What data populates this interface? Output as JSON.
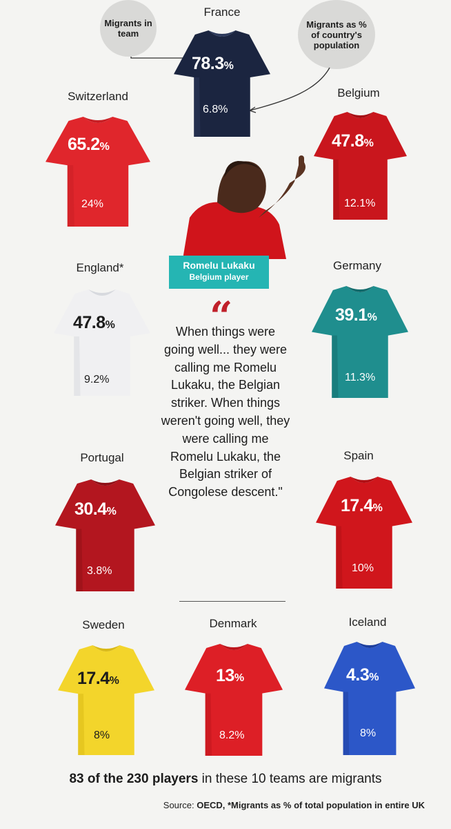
{
  "legend": {
    "team_label": "Migrants in team",
    "population_label": "Migrants as % of country's population"
  },
  "teams": [
    {
      "country": "France",
      "team_pct": "78.3",
      "pop_pct": "6.8%",
      "colors": {
        "main": "#1b2540",
        "accent": "#2d3a5c"
      }
    },
    {
      "country": "Switzerland",
      "team_pct": "65.2",
      "pop_pct": "24%",
      "colors": {
        "main": "#e0262c",
        "accent": "#c81e24"
      }
    },
    {
      "country": "Belgium",
      "team_pct": "47.8",
      "pop_pct": "12.1%",
      "colors": {
        "main": "#c9161d",
        "accent": "#a60f15"
      }
    },
    {
      "country": "England*",
      "team_pct": "47.8",
      "pop_pct": "9.2%",
      "colors": {
        "main": "#f0f0f2",
        "accent": "#d7d9de"
      }
    },
    {
      "country": "Germany",
      "team_pct": "39.1",
      "pop_pct": "11.3%",
      "colors": {
        "main": "#1f8e8e",
        "accent": "#146b6c"
      }
    },
    {
      "country": "Portugal",
      "team_pct": "30.4",
      "pop_pct": "3.8%",
      "colors": {
        "main": "#b3161f",
        "accent": "#8f0f16"
      }
    },
    {
      "country": "Spain",
      "team_pct": "17.4",
      "pop_pct": "10%",
      "colors": {
        "main": "#d0161c",
        "accent": "#b10f14"
      }
    },
    {
      "country": "Sweden",
      "team_pct": "17.4",
      "pop_pct": "8%",
      "colors": {
        "main": "#f3d52b",
        "accent": "#d9b916"
      }
    },
    {
      "country": "Denmark",
      "team_pct": "13",
      "pop_pct": "8.2%",
      "colors": {
        "main": "#dd1f26",
        "accent": "#bd151c"
      }
    },
    {
      "country": "Iceland",
      "team_pct": "4.3",
      "pop_pct": "8%",
      "colors": {
        "main": "#2c57c8",
        "accent": "#1d3f9e"
      }
    }
  ],
  "percent_symbol": "%",
  "player": {
    "name": "Romelu Lukaku",
    "role": "Belgium player"
  },
  "quote": {
    "mark": "“",
    "text": "When things were going well... they were calling me Romelu Lukaku, the Belgian striker. When things weren't going well, they were calling me Romelu Lukaku, the Belgian striker of Congolese descent.\""
  },
  "footer": {
    "highlight": "83 of the 230 players",
    "rest": " in these 10 teams are migrants",
    "source_label": "Source: ",
    "source_text": "OECD, *Migrants as % of total population in entire UK"
  },
  "accent_color": "#25b5b3"
}
